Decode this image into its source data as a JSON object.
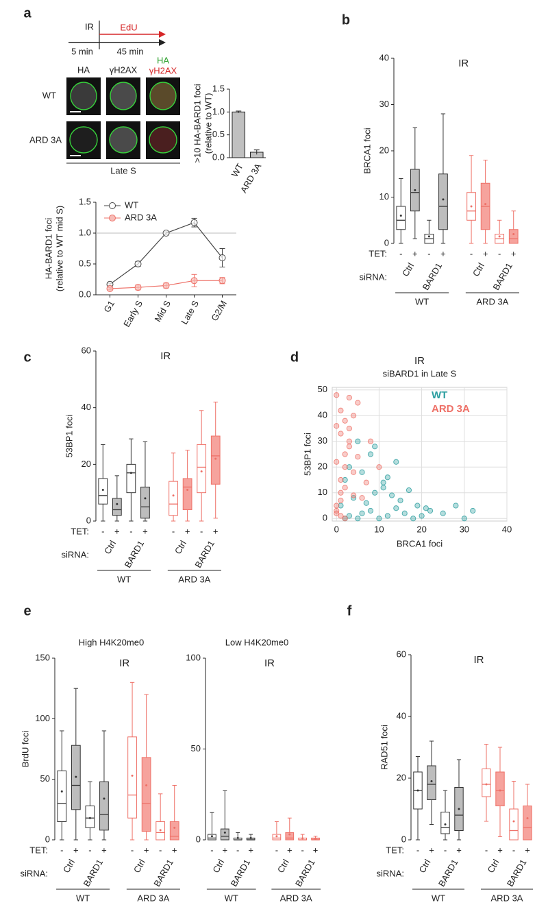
{
  "figure": {
    "panels": [
      "a",
      "b",
      "c",
      "d",
      "e",
      "f"
    ]
  },
  "diagram": {
    "ir": "IR",
    "edu": "EdU",
    "before": "5 min",
    "after": "45 min",
    "columns": [
      "HA",
      "γH2AX"
    ],
    "merged": [
      "HA",
      "γH2AX"
    ],
    "rows": [
      "WT",
      "ARD 3A"
    ],
    "caption": "Late S"
  },
  "chart_data": [
    {
      "type": "bar",
      "ylabel": ">10 HA-BARD1 foci",
      "ylabel_line2": "(relative to WT)",
      "categories": [
        "WT",
        "ARD 3A"
      ],
      "values": [
        1.0,
        0.12
      ],
      "errors": [
        0.02,
        0.05
      ],
      "color": "#c0c0c0",
      "ylim": [
        0,
        1.5
      ],
      "yticks": [
        {
          "value": 0,
          "label": "0.0"
        },
        0.5,
        {
          "value": 1,
          "label": "1.0"
        },
        1.5
      ]
    },
    {
      "type": "line",
      "ylabel": "HA-BARD1 foci",
      "ylabel_line2": "(relative to WT mid S)",
      "categories": [
        "G1",
        "Early S",
        "Mid S",
        "Late S",
        "G2/M"
      ],
      "series": [
        {
          "name": "WT",
          "color": "#444444",
          "values": [
            0.17,
            0.5,
            1.0,
            1.17,
            0.6
          ],
          "errors": [
            0.02,
            0.04,
            0.02,
            0.07,
            0.15
          ]
        },
        {
          "name": "ARD 3A",
          "color": "#ee7067",
          "values": [
            0.1,
            0.12,
            0.15,
            0.23,
            0.23
          ],
          "errors": [
            0.02,
            0.04,
            0.04,
            0.1,
            0.05
          ]
        }
      ],
      "reference_line": 1,
      "ylim": [
        0,
        1.5
      ],
      "yticks": [
        {
          "value": 0,
          "label": "0.0"
        },
        0.5,
        {
          "value": 1,
          "label": "1.0"
        },
        1.5
      ]
    },
    {
      "type": "box",
      "title": "IR",
      "ylabel": "BRCA1 foci",
      "ylim": [
        0,
        40
      ],
      "yticks": [
        0,
        10,
        20,
        30,
        40
      ],
      "boxes": [
        {
          "q1": 3,
          "median": 5,
          "q3": 8,
          "whisker_low": 0,
          "whisker_high": 14,
          "mean": 6
        },
        {
          "q1": 7,
          "median": 11,
          "q3": 16,
          "whisker_low": 1,
          "whisker_high": 25,
          "mean": 11.5
        },
        {
          "q1": 0,
          "median": 1,
          "q3": 2,
          "whisker_low": 0,
          "whisker_high": 5,
          "mean": 1.5
        },
        {
          "q1": 3,
          "median": 8,
          "q3": 15,
          "whisker_low": 0,
          "whisker_high": 28,
          "mean": 9.5
        },
        {
          "q1": 5,
          "median": 7,
          "q3": 11,
          "whisker_low": 0,
          "whisker_high": 19,
          "mean": 8
        },
        {
          "q1": 3,
          "median": 8,
          "q3": 13,
          "whisker_low": 0,
          "whisker_high": 18,
          "mean": 8.5
        },
        {
          "q1": 0,
          "median": 1,
          "q3": 2,
          "whisker_low": 0,
          "whisker_high": 5,
          "mean": 1.5
        },
        {
          "q1": 0,
          "median": 1,
          "q3": 3,
          "whisker_low": 0,
          "whisker_high": 7,
          "mean": 2
        }
      ],
      "box_colors": [
        "#333333",
        "#333333",
        "#333333",
        "#333333",
        "#ee7067",
        "#ee7067",
        "#ee7067",
        "#ee7067"
      ],
      "box_fills": [
        "#ffffff",
        "#bdbdbd",
        "#ffffff",
        "#bdbdbd",
        "#ffffff",
        "#f6a39d",
        "#ffffff",
        "#f6a39d"
      ],
      "tet_label": "TET:",
      "tet": [
        "-",
        "+",
        "-",
        "+",
        "-",
        "+",
        "-",
        "+"
      ],
      "sirna_label": "siRNA:",
      "sirna": [
        "Ctrl",
        "BARD1",
        "Ctrl",
        "BARD1"
      ],
      "groups": [
        "WT",
        "ARD 3A"
      ]
    },
    {
      "type": "box",
      "title": "IR",
      "ylabel": "53BP1 foci",
      "ylim": [
        0,
        60
      ],
      "yticks": [
        0,
        20,
        40,
        60
      ],
      "boxes": [
        {
          "q1": 6,
          "median": 9,
          "q3": 15,
          "whisker_low": 0,
          "whisker_high": 27,
          "mean": 11
        },
        {
          "q1": 2,
          "median": 4,
          "q3": 8,
          "whisker_low": 0,
          "whisker_high": 16,
          "mean": 6
        },
        {
          "q1": 10,
          "median": 17,
          "q3": 20,
          "whisker_low": 0,
          "whisker_high": 29,
          "mean": 17
        },
        {
          "q1": 1,
          "median": 5,
          "q3": 12,
          "whisker_low": 0,
          "whisker_high": 28,
          "mean": 8
        },
        {
          "q1": 2,
          "median": 6,
          "q3": 14,
          "whisker_low": 0,
          "whisker_high": 24,
          "mean": 9
        },
        {
          "q1": 4,
          "median": 12,
          "q3": 15,
          "whisker_low": 0,
          "whisker_high": 25,
          "mean": 11
        },
        {
          "q1": 10,
          "median": 19,
          "q3": 27,
          "whisker_low": 0,
          "whisker_high": 39,
          "mean": 17.5
        },
        {
          "q1": 13,
          "median": 23,
          "q3": 30,
          "whisker_low": 1,
          "whisker_high": 42,
          "mean": 22
        }
      ],
      "box_colors": [
        "#333333",
        "#333333",
        "#333333",
        "#333333",
        "#ee7067",
        "#ee7067",
        "#ee7067",
        "#ee7067"
      ],
      "box_fills": [
        "#ffffff",
        "#bdbdbd",
        "#ffffff",
        "#bdbdbd",
        "#ffffff",
        "#f6a39d",
        "#ffffff",
        "#f6a39d"
      ],
      "tet_label": "TET:",
      "tet": [
        "-",
        "+",
        "-",
        "+",
        "-",
        "+",
        "-",
        "+"
      ],
      "sirna_label": "siRNA:",
      "sirna": [
        "Ctrl",
        "BARD1",
        "Ctrl",
        "BARD1"
      ],
      "groups": [
        "WT",
        "ARD 3A"
      ]
    },
    {
      "type": "scatter",
      "title": "IR",
      "subtitle": "siBARD1 in Late S",
      "xlabel": "BRCA1 foci",
      "ylabel": "53BP1 foci",
      "grid": true,
      "xlim": [
        -1,
        40
      ],
      "xticks": [
        0,
        10,
        20,
        30,
        40
      ],
      "ylim": [
        -1,
        51
      ],
      "yticks": [
        0,
        10,
        20,
        30,
        40,
        50
      ],
      "legend": "top-right",
      "series": [
        {
          "name": "WT",
          "color": "#2a9d9f",
          "x": [
            2,
            3,
            5,
            6,
            8,
            10,
            12,
            14,
            16,
            18,
            20,
            22,
            25,
            28,
            30,
            32,
            4,
            7,
            9,
            11,
            13,
            15,
            17,
            19,
            21,
            1,
            2,
            3,
            6,
            8,
            11,
            14,
            5,
            9,
            12
          ],
          "values": [
            0,
            1,
            0,
            2,
            3,
            0,
            1,
            4,
            2,
            0,
            1,
            3,
            2,
            5,
            0,
            3,
            8,
            6,
            10,
            12,
            9,
            7,
            11,
            5,
            4,
            5,
            15,
            20,
            18,
            25,
            14,
            22,
            30,
            28,
            16
          ]
        },
        {
          "name": "ARD 3A",
          "color": "#ee7067",
          "x": [
            0,
            0,
            1,
            1,
            2,
            2,
            3,
            3,
            4,
            5,
            0,
            1,
            2,
            3,
            4,
            0,
            1,
            2,
            6,
            7,
            0,
            1,
            2,
            3,
            5,
            8,
            0,
            1,
            4,
            10
          ],
          "values": [
            2,
            5,
            10,
            15,
            20,
            25,
            30,
            35,
            40,
            45,
            48,
            42,
            38,
            28,
            18,
            22,
            33,
            12,
            8,
            14,
            3,
            7,
            0,
            47,
            24,
            30,
            36,
            1,
            9,
            20
          ]
        }
      ]
    },
    {
      "type": "box",
      "subtitle": "High H4K20me0",
      "title": "IR",
      "ylabel": "BrdU foci",
      "ylim": [
        0,
        150
      ],
      "yticks": [
        0,
        50,
        100,
        150
      ],
      "boxes": [
        {
          "q1": 15,
          "median": 30,
          "q3": 57,
          "whisker_low": 0,
          "whisker_high": 90,
          "mean": 40
        },
        {
          "q1": 25,
          "median": 45,
          "q3": 78,
          "whisker_low": 0,
          "whisker_high": 125,
          "mean": 52
        },
        {
          "q1": 10,
          "median": 18,
          "q3": 28,
          "whisker_low": 0,
          "whisker_high": 48,
          "mean": 18
        },
        {
          "q1": 8,
          "median": 21,
          "q3": 48,
          "whisker_low": 0,
          "whisker_high": 90,
          "mean": 34
        },
        {
          "q1": 18,
          "median": 37,
          "q3": 85,
          "whisker_low": 0,
          "whisker_high": 130,
          "mean": 53
        },
        {
          "q1": 7,
          "median": 30,
          "q3": 68,
          "whisker_low": 0,
          "whisker_high": 120,
          "mean": 45
        },
        {
          "q1": 0,
          "median": 6,
          "q3": 15,
          "whisker_low": 0,
          "whisker_high": 38,
          "mean": 8
        },
        {
          "q1": 0,
          "median": 3,
          "q3": 15,
          "whisker_low": 0,
          "whisker_high": 45,
          "mean": 10
        }
      ],
      "box_colors": [
        "#333333",
        "#333333",
        "#333333",
        "#333333",
        "#ee7067",
        "#ee7067",
        "#ee7067",
        "#ee7067"
      ],
      "box_fills": [
        "#ffffff",
        "#bdbdbd",
        "#ffffff",
        "#bdbdbd",
        "#ffffff",
        "#f6a39d",
        "#ffffff",
        "#f6a39d"
      ],
      "tet_label": "TET:",
      "tet": [
        "-",
        "+",
        "-",
        "+",
        "-",
        "+",
        "-",
        "+"
      ],
      "sirna_label": "siRNA:",
      "sirna": [
        "Ctrl",
        "BARD1",
        "Ctrl",
        "BARD1"
      ],
      "groups": [
        "WT",
        "ARD 3A"
      ]
    },
    {
      "type": "box",
      "subtitle": "Low H4K20me0",
      "title": "IR",
      "ylim": [
        0,
        100
      ],
      "yticks": [
        0,
        50,
        100
      ],
      "boxes": [
        {
          "q1": 0,
          "median": 1,
          "q3": 3,
          "whisker_low": 0,
          "whisker_high": 15,
          "mean": 2
        },
        {
          "q1": 0,
          "median": 2,
          "q3": 6,
          "whisker_low": 0,
          "whisker_high": 27,
          "mean": 4
        },
        {
          "q1": 0,
          "median": 0,
          "q3": 1,
          "whisker_low": 0,
          "whisker_high": 4,
          "mean": 1
        },
        {
          "q1": 0,
          "median": 0,
          "q3": 1,
          "whisker_low": 0,
          "whisker_high": 3,
          "mean": 1
        },
        {
          "q1": 0,
          "median": 1,
          "q3": 3,
          "whisker_low": 0,
          "whisker_high": 10,
          "mean": 2
        },
        {
          "q1": 0,
          "median": 1,
          "q3": 4,
          "whisker_low": 0,
          "whisker_high": 12,
          "mean": 3
        },
        {
          "q1": 0,
          "median": 0,
          "q3": 1,
          "whisker_low": 0,
          "whisker_high": 3,
          "mean": 0.8
        },
        {
          "q1": 0,
          "median": 0,
          "q3": 1,
          "whisker_low": 0,
          "whisker_high": 2,
          "mean": 0.5
        }
      ],
      "box_colors": [
        "#333333",
        "#333333",
        "#333333",
        "#333333",
        "#ee7067",
        "#ee7067",
        "#ee7067",
        "#ee7067"
      ],
      "box_fills": [
        "#ffffff",
        "#bdbdbd",
        "#ffffff",
        "#bdbdbd",
        "#ffffff",
        "#f6a39d",
        "#ffffff",
        "#f6a39d"
      ],
      "tet": [
        "-",
        "+",
        "-",
        "+",
        "-",
        "+",
        "-",
        "+"
      ],
      "sirna": [
        "Ctrl",
        "BARD1",
        "Ctrl",
        "BARD1"
      ],
      "groups": [
        "WT",
        "ARD 3A"
      ]
    },
    {
      "type": "box",
      "title": "IR",
      "ylabel": "RAD51 foci",
      "ylim": [
        0,
        60
      ],
      "yticks": [
        0,
        20,
        40,
        60
      ],
      "boxes": [
        {
          "q1": 10,
          "median": 16,
          "q3": 22,
          "whisker_low": 0,
          "whisker_high": 27,
          "mean": 16
        },
        {
          "q1": 13,
          "median": 18,
          "q3": 24,
          "whisker_low": 5,
          "whisker_high": 32,
          "mean": 19
        },
        {
          "q1": 2,
          "median": 4,
          "q3": 9,
          "whisker_low": 0,
          "whisker_high": 16,
          "mean": 5
        },
        {
          "q1": 3,
          "median": 8,
          "q3": 17,
          "whisker_low": 0,
          "whisker_high": 26,
          "mean": 10
        },
        {
          "q1": 14,
          "median": 18,
          "q3": 23,
          "whisker_low": 6,
          "whisker_high": 31,
          "mean": 18
        },
        {
          "q1": 11,
          "median": 16,
          "q3": 22,
          "whisker_low": 1,
          "whisker_high": 30,
          "mean": 16
        },
        {
          "q1": 0,
          "median": 3,
          "q3": 10,
          "whisker_low": 0,
          "whisker_high": 19,
          "mean": 6
        },
        {
          "q1": 0,
          "median": 4,
          "q3": 11,
          "whisker_low": 0,
          "whisker_high": 18,
          "mean": 7
        }
      ],
      "box_colors": [
        "#333333",
        "#333333",
        "#333333",
        "#333333",
        "#ee7067",
        "#ee7067",
        "#ee7067",
        "#ee7067"
      ],
      "box_fills": [
        "#ffffff",
        "#bdbdbd",
        "#ffffff",
        "#bdbdbd",
        "#ffffff",
        "#f6a39d",
        "#ffffff",
        "#f6a39d"
      ],
      "tet_label": "TET:",
      "tet": [
        "-",
        "+",
        "-",
        "+",
        "-",
        "+",
        "-",
        "+"
      ],
      "sirna_label": "siRNA:",
      "sirna": [
        "Ctrl",
        "BARD1",
        "Ctrl",
        "BARD1"
      ],
      "groups": [
        "WT",
        "ARD 3A"
      ]
    }
  ]
}
